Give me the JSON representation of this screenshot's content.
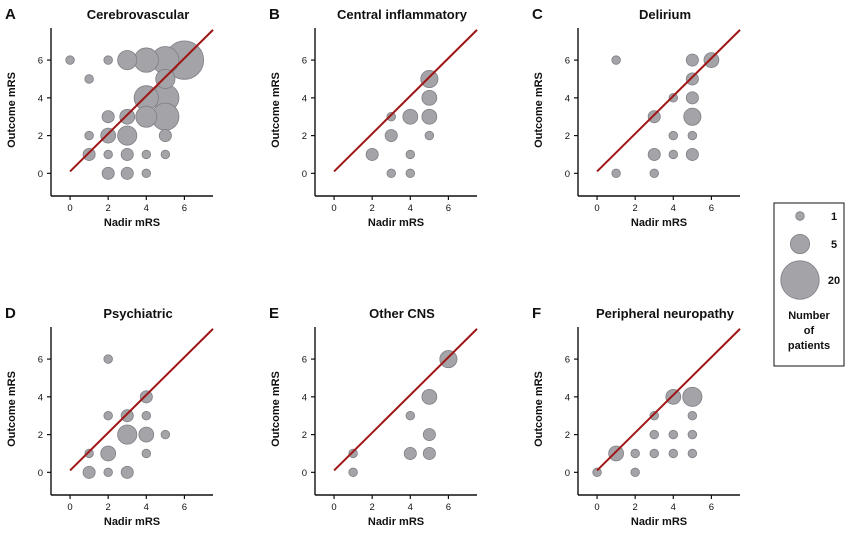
{
  "chart_data": [
    {
      "id": "A",
      "letter": "A",
      "type": "scatter",
      "title": "Cerebrovascular",
      "xlabel": "Nadir mRS",
      "ylabel": "Outcome mRS",
      "xticks": [
        0,
        2,
        4,
        6
      ],
      "yticks": [
        0,
        2,
        4,
        6
      ],
      "xlim": [
        -1,
        7.5
      ],
      "ylim": [
        -1.2,
        7.7
      ],
      "grid": false,
      "reference_line": [
        [
          0,
          0.1
        ],
        [
          7.5,
          7.6
        ]
      ],
      "points": [
        {
          "x": 0,
          "y": 6,
          "n": 1
        },
        {
          "x": 1,
          "y": 5,
          "n": 1
        },
        {
          "x": 1,
          "y": 2,
          "n": 1
        },
        {
          "x": 1,
          "y": 1,
          "n": 2
        },
        {
          "x": 2,
          "y": 6,
          "n": 1
        },
        {
          "x": 2,
          "y": 3,
          "n": 2
        },
        {
          "x": 2,
          "y": 2,
          "n": 3
        },
        {
          "x": 2,
          "y": 1,
          "n": 1
        },
        {
          "x": 2,
          "y": 0,
          "n": 2
        },
        {
          "x": 3,
          "y": 6,
          "n": 5
        },
        {
          "x": 3,
          "y": 3,
          "n": 3
        },
        {
          "x": 3,
          "y": 2,
          "n": 5
        },
        {
          "x": 3,
          "y": 1,
          "n": 2
        },
        {
          "x": 3,
          "y": 0,
          "n": 2
        },
        {
          "x": 4,
          "y": 6,
          "n": 8
        },
        {
          "x": 4,
          "y": 4,
          "n": 8
        },
        {
          "x": 4,
          "y": 3,
          "n": 6
        },
        {
          "x": 4,
          "y": 1,
          "n": 1
        },
        {
          "x": 4,
          "y": 0,
          "n": 1
        },
        {
          "x": 5,
          "y": 6,
          "n": 10
        },
        {
          "x": 5,
          "y": 5,
          "n": 5
        },
        {
          "x": 5,
          "y": 4,
          "n": 10
        },
        {
          "x": 5,
          "y": 3,
          "n": 10
        },
        {
          "x": 5,
          "y": 2,
          "n": 2
        },
        {
          "x": 5,
          "y": 1,
          "n": 1
        },
        {
          "x": 6,
          "y": 6,
          "n": 20
        }
      ]
    },
    {
      "id": "B",
      "letter": "B",
      "type": "scatter",
      "title": "Central inflammatory",
      "xlabel": "Nadir mRS",
      "ylabel": "Outcome mRS",
      "xticks": [
        0,
        2,
        4,
        6
      ],
      "yticks": [
        0,
        2,
        4,
        6
      ],
      "xlim": [
        -1,
        7.5
      ],
      "ylim": [
        -1.2,
        7.7
      ],
      "grid": false,
      "reference_line": [
        [
          0,
          0.1
        ],
        [
          7.5,
          7.6
        ]
      ],
      "points": [
        {
          "x": 2,
          "y": 1,
          "n": 2
        },
        {
          "x": 3,
          "y": 3,
          "n": 1
        },
        {
          "x": 3,
          "y": 2,
          "n": 2
        },
        {
          "x": 3,
          "y": 0,
          "n": 1
        },
        {
          "x": 4,
          "y": 3,
          "n": 3
        },
        {
          "x": 4,
          "y": 1,
          "n": 1
        },
        {
          "x": 4,
          "y": 0,
          "n": 1
        },
        {
          "x": 5,
          "y": 5,
          "n": 4
        },
        {
          "x": 5,
          "y": 4,
          "n": 3
        },
        {
          "x": 5,
          "y": 3,
          "n": 3
        },
        {
          "x": 5,
          "y": 2,
          "n": 1
        }
      ]
    },
    {
      "id": "C",
      "letter": "C",
      "type": "scatter",
      "title": "Delirium",
      "xlabel": "Nadir mRS",
      "ylabel": "Outcome mRS",
      "xticks": [
        0,
        2,
        4,
        6
      ],
      "yticks": [
        0,
        2,
        4,
        6
      ],
      "xlim": [
        -1,
        7.5
      ],
      "ylim": [
        -1.2,
        7.7
      ],
      "grid": false,
      "reference_line": [
        [
          0,
          0.1
        ],
        [
          7.5,
          7.6
        ]
      ],
      "points": [
        {
          "x": 1,
          "y": 6,
          "n": 1
        },
        {
          "x": 1,
          "y": 0,
          "n": 1
        },
        {
          "x": 3,
          "y": 3,
          "n": 2
        },
        {
          "x": 3,
          "y": 1,
          "n": 2
        },
        {
          "x": 3,
          "y": 0,
          "n": 1
        },
        {
          "x": 4,
          "y": 4,
          "n": 1
        },
        {
          "x": 4,
          "y": 2,
          "n": 1
        },
        {
          "x": 4,
          "y": 1,
          "n": 1
        },
        {
          "x": 5,
          "y": 6,
          "n": 2
        },
        {
          "x": 5,
          "y": 5,
          "n": 2
        },
        {
          "x": 5,
          "y": 4,
          "n": 2
        },
        {
          "x": 5,
          "y": 3,
          "n": 4
        },
        {
          "x": 5,
          "y": 2,
          "n": 1
        },
        {
          "x": 5,
          "y": 1,
          "n": 2
        },
        {
          "x": 6,
          "y": 6,
          "n": 3
        }
      ]
    },
    {
      "id": "D",
      "letter": "D",
      "type": "scatter",
      "title": "Psychiatric",
      "xlabel": "Nadir mRS",
      "ylabel": "Outcome mRS",
      "xticks": [
        0,
        2,
        4,
        6
      ],
      "yticks": [
        0,
        2,
        4,
        6
      ],
      "xlim": [
        -1,
        7.5
      ],
      "ylim": [
        -1.2,
        7.7
      ],
      "grid": false,
      "reference_line": [
        [
          0,
          0.1
        ],
        [
          7.5,
          7.6
        ]
      ],
      "points": [
        {
          "x": 1,
          "y": 1,
          "n": 1
        },
        {
          "x": 1,
          "y": 0,
          "n": 2
        },
        {
          "x": 2,
          "y": 6,
          "n": 1
        },
        {
          "x": 2,
          "y": 3,
          "n": 1
        },
        {
          "x": 2,
          "y": 1,
          "n": 3
        },
        {
          "x": 2,
          "y": 0,
          "n": 1
        },
        {
          "x": 3,
          "y": 3,
          "n": 2
        },
        {
          "x": 3,
          "y": 2,
          "n": 5
        },
        {
          "x": 3,
          "y": 0,
          "n": 2
        },
        {
          "x": 4,
          "y": 4,
          "n": 2
        },
        {
          "x": 4,
          "y": 3,
          "n": 1
        },
        {
          "x": 4,
          "y": 2,
          "n": 3
        },
        {
          "x": 4,
          "y": 1,
          "n": 1
        },
        {
          "x": 5,
          "y": 2,
          "n": 1
        }
      ]
    },
    {
      "id": "E",
      "letter": "E",
      "type": "scatter",
      "title": "Other CNS",
      "xlabel": "Nadir mRS",
      "ylabel": "Outcome mRS",
      "xticks": [
        0,
        2,
        4,
        6
      ],
      "yticks": [
        0,
        2,
        4,
        6
      ],
      "xlim": [
        -1,
        7.5
      ],
      "ylim": [
        -1.2,
        7.7
      ],
      "grid": false,
      "reference_line": [
        [
          0,
          0.1
        ],
        [
          7.5,
          7.6
        ]
      ],
      "points": [
        {
          "x": 1,
          "y": 1,
          "n": 1
        },
        {
          "x": 1,
          "y": 0,
          "n": 1
        },
        {
          "x": 4,
          "y": 3,
          "n": 1
        },
        {
          "x": 4,
          "y": 1,
          "n": 2
        },
        {
          "x": 5,
          "y": 4,
          "n": 3
        },
        {
          "x": 5,
          "y": 2,
          "n": 2
        },
        {
          "x": 5,
          "y": 1,
          "n": 2
        },
        {
          "x": 6,
          "y": 6,
          "n": 4
        }
      ]
    },
    {
      "id": "F",
      "letter": "F",
      "type": "scatter",
      "title": "Peripheral neuropathy",
      "xlabel": "Nadir mRS",
      "ylabel": "Outcome mRS",
      "xticks": [
        0,
        2,
        4,
        6
      ],
      "yticks": [
        0,
        2,
        4,
        6
      ],
      "xlim": [
        -1,
        7.5
      ],
      "ylim": [
        -1.2,
        7.7
      ],
      "grid": false,
      "reference_line": [
        [
          0,
          0.1
        ],
        [
          7.5,
          7.6
        ]
      ],
      "points": [
        {
          "x": 0,
          "y": 0,
          "n": 1
        },
        {
          "x": 1,
          "y": 1,
          "n": 3
        },
        {
          "x": 2,
          "y": 1,
          "n": 1
        },
        {
          "x": 2,
          "y": 0,
          "n": 1
        },
        {
          "x": 3,
          "y": 3,
          "n": 1
        },
        {
          "x": 3,
          "y": 2,
          "n": 1
        },
        {
          "x": 3,
          "y": 1,
          "n": 1
        },
        {
          "x": 4,
          "y": 4,
          "n": 3
        },
        {
          "x": 4,
          "y": 2,
          "n": 1
        },
        {
          "x": 4,
          "y": 1,
          "n": 1
        },
        {
          "x": 5,
          "y": 4,
          "n": 5
        },
        {
          "x": 5,
          "y": 3,
          "n": 1
        },
        {
          "x": 5,
          "y": 2,
          "n": 1
        },
        {
          "x": 5,
          "y": 1,
          "n": 1
        }
      ]
    }
  ],
  "legend": {
    "placement": "right",
    "sizes": [
      {
        "n": 1,
        "label": "1"
      },
      {
        "n": 5,
        "label": "5"
      },
      {
        "n": 20,
        "label": "20"
      }
    ],
    "title_lines": [
      "Number",
      "of",
      "patients"
    ]
  },
  "colors": {
    "bubble_fill": "#a3a3a8",
    "bubble_stroke": "#7e7e84",
    "reference_line": "#a01616",
    "axis": "#111111"
  }
}
